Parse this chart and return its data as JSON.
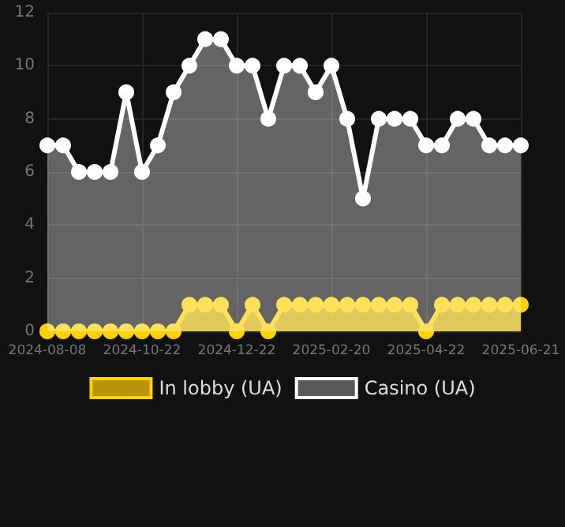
{
  "chart_data": {
    "type": "area",
    "categories": [
      "2024-08-08",
      null,
      null,
      null,
      null,
      null,
      "2024-10-22",
      null,
      null,
      null,
      null,
      null,
      "2024-12-22",
      null,
      null,
      null,
      null,
      null,
      "2025-02-20",
      null,
      null,
      null,
      null,
      null,
      "2025-04-22",
      null,
      null,
      null,
      null,
      null,
      "2025-06-21"
    ],
    "series": [
      {
        "name": "In lobby (UA)",
        "color": "#ffd200",
        "values": [
          0,
          0,
          0,
          0,
          0,
          0,
          0,
          0,
          0,
          1,
          1,
          1,
          0,
          1,
          0,
          1,
          1,
          1,
          1,
          1,
          1,
          1,
          1,
          1,
          0,
          1,
          1,
          1,
          1,
          1,
          1
        ]
      },
      {
        "name": "Casino (UA)",
        "color": "#ffffff",
        "values": [
          7,
          7,
          6,
          6,
          6,
          9,
          6,
          7,
          9,
          10,
          11,
          11,
          10,
          10,
          8,
          10,
          10,
          9,
          10,
          8,
          5,
          8,
          8,
          8,
          7,
          7,
          8,
          8,
          7,
          7,
          7
        ]
      }
    ],
    "ylim": [
      0,
      12
    ],
    "yticks": [
      0,
      2,
      4,
      6,
      8,
      10,
      12
    ],
    "grid": true,
    "legend": "bottom",
    "marker": "circle"
  }
}
